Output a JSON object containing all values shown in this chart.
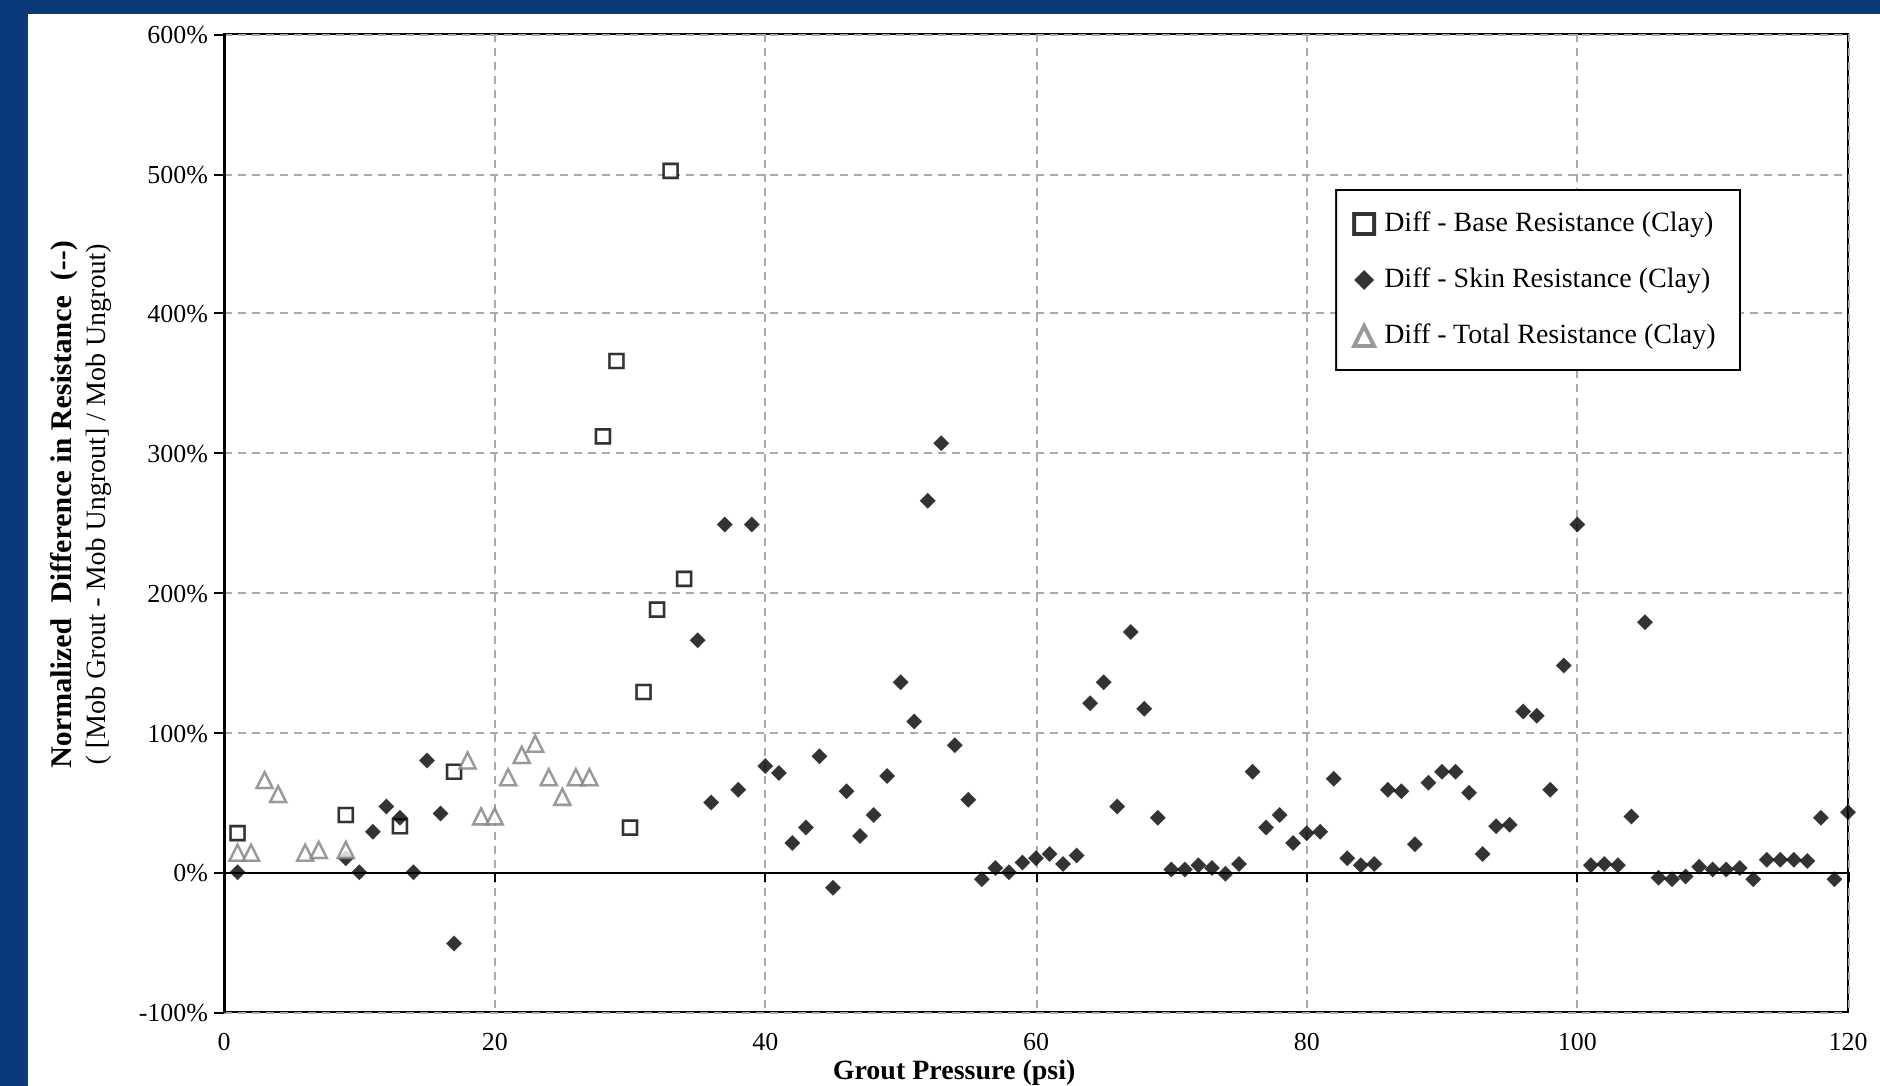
{
  "chart_data": {
    "type": "scatter",
    "xlabel": "Grout Pressure (psi)",
    "ylabel": "Normalized  Difference in Resistance  (--)\n( [Mob Grout - Mob Ungrout] / Mob Ungrout)",
    "xlim": [
      0,
      120
    ],
    "xticks": [
      0,
      20,
      40,
      60,
      80,
      100,
      120
    ],
    "ylim": [
      -100,
      600
    ],
    "yticks": [
      {
        "value": -100,
        "label": "-100%"
      },
      {
        "value": 0,
        "label": "0%"
      },
      {
        "value": 100,
        "label": "100%"
      },
      {
        "value": 200,
        "label": "200%"
      },
      {
        "value": 300,
        "label": "300%"
      },
      {
        "value": 400,
        "label": "400%"
      },
      {
        "value": 500,
        "label": "500%"
      },
      {
        "value": 600,
        "label": "600%"
      }
    ],
    "grid": true,
    "legend": "top right",
    "series": [
      {
        "name": "Diff - Base Resistance (Clay)",
        "color": "#000000",
        "marker": "square",
        "x": [
          1,
          9,
          13,
          17,
          28,
          29,
          30,
          31,
          32,
          33,
          34
        ],
        "values": [
          28,
          41,
          33,
          72,
          312,
          366,
          32,
          129,
          188,
          502,
          210
        ]
      },
      {
        "name": "Diff - Skin Resistance (Clay)",
        "color": "#000000",
        "marker": "diamond",
        "x": [
          1,
          9,
          10,
          11,
          12,
          13,
          14,
          15,
          16,
          17,
          35,
          36,
          37,
          38,
          39,
          40,
          41,
          42,
          43,
          44,
          45,
          46,
          47,
          48,
          49,
          50,
          51,
          52,
          53,
          54,
          55,
          56,
          57,
          58,
          59,
          60,
          61,
          62,
          63,
          64,
          65,
          66,
          67,
          68,
          69,
          70,
          71,
          72,
          73,
          74,
          75,
          76,
          77,
          78,
          79,
          80,
          81,
          82,
          83,
          84,
          85,
          86,
          87,
          88,
          89,
          90,
          91,
          92,
          93,
          94,
          95,
          96,
          97,
          98,
          99,
          100,
          101,
          102,
          103,
          104,
          105,
          106,
          107,
          108,
          109,
          110,
          111,
          112,
          113,
          114,
          115,
          116,
          117,
          118,
          119,
          120
        ],
        "values": [
          0,
          10,
          0,
          29,
          47,
          39,
          0,
          80,
          42,
          -51,
          166,
          50,
          249,
          59,
          249,
          76,
          71,
          21,
          32,
          83,
          -11,
          58,
          26,
          41,
          69,
          136,
          108,
          266,
          307,
          91,
          52,
          -5,
          3,
          0,
          7,
          10,
          13,
          6,
          12,
          121,
          136,
          47,
          172,
          117,
          39,
          2,
          2,
          5,
          3,
          -1,
          6,
          72,
          32,
          41,
          21,
          28,
          29,
          67,
          10,
          5,
          6,
          59,
          58,
          20,
          64,
          72,
          72,
          57,
          13,
          33,
          34,
          115,
          112,
          59,
          148,
          249,
          5,
          6,
          5,
          40,
          179,
          -4,
          -5,
          -3,
          4,
          2,
          2,
          3,
          -5,
          9,
          9,
          9,
          8,
          39,
          -5,
          43
        ]
      },
      {
        "name": "Diff - Total Resistance (Clay)",
        "color": "#7f7f7f",
        "marker": "triangle",
        "x": [
          1,
          2,
          3,
          4,
          6,
          7,
          9,
          18,
          19,
          20,
          21,
          22,
          23,
          24,
          25,
          26,
          27
        ],
        "values": [
          14,
          14,
          66,
          56,
          14,
          16,
          16,
          80,
          40,
          40,
          68,
          84,
          92,
          68,
          54,
          68,
          68
        ]
      }
    ]
  }
}
